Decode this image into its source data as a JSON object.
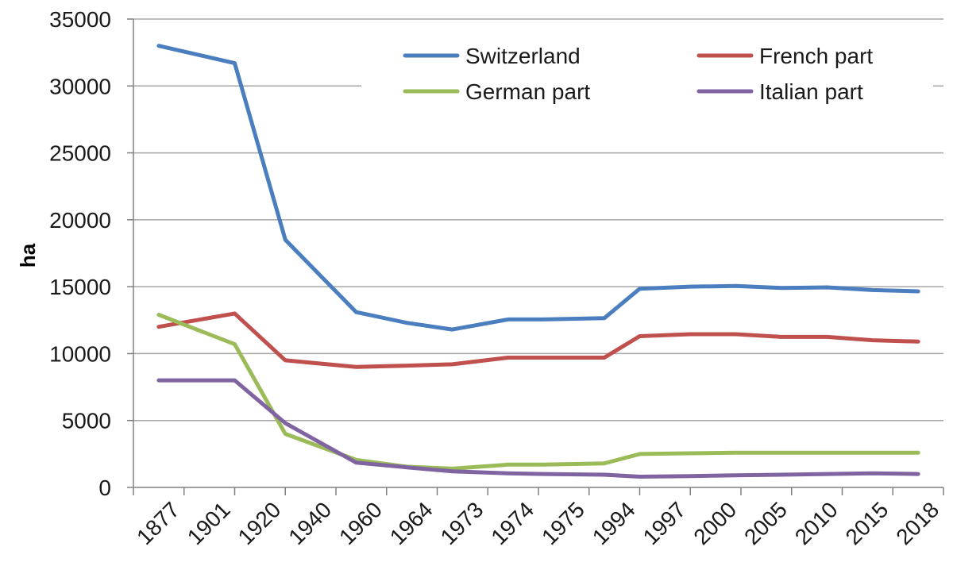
{
  "chart_data": {
    "type": "line",
    "ylabel": "ha",
    "xlabel": "",
    "ylim": [
      0,
      35000
    ],
    "yticks": [
      0,
      5000,
      10000,
      15000,
      20000,
      25000,
      30000,
      35000
    ],
    "grid": "horizontal",
    "legend_position": "top-right",
    "categories": [
      "1877",
      "1901",
      "1920",
      "1940",
      "1960",
      "1964",
      "1973",
      "1974",
      "1975",
      "1994",
      "1997",
      "2000",
      "2005",
      "2010",
      "2015",
      "2018"
    ],
    "series": [
      {
        "name": "Switzerland",
        "color": "#4a7ebf",
        "x": [
          1,
          2.5,
          3.5,
          4.9,
          5.9,
          6.8,
          7.9,
          8.6,
          9.8,
          10.5,
          11.5,
          12.4,
          13.3,
          14.2,
          15.1,
          16
        ],
        "values": [
          33000,
          31700,
          18500,
          13100,
          12300,
          11800,
          12550,
          12550,
          12650,
          14850,
          15000,
          15050,
          14900,
          14950,
          14750,
          14650
        ]
      },
      {
        "name": "French part",
        "color": "#c0504d",
        "x": [
          1,
          2.5,
          3.5,
          4.9,
          5.9,
          6.8,
          7.9,
          8.6,
          9.8,
          10.5,
          11.5,
          12.4,
          13.3,
          14.2,
          15.1,
          16
        ],
        "values": [
          12000,
          13000,
          9500,
          9000,
          9100,
          9200,
          9700,
          9700,
          9700,
          11300,
          11450,
          11450,
          11250,
          11250,
          11000,
          10900
        ]
      },
      {
        "name": "German part",
        "color": "#9bbb59",
        "x": [
          1,
          2.5,
          3.5,
          4.9,
          5.9,
          6.8,
          7.9,
          8.6,
          9.8,
          10.5,
          11.5,
          12.4,
          13.3,
          14.2,
          15.1,
          16
        ],
        "values": [
          12900,
          10700,
          4000,
          2050,
          1550,
          1400,
          1700,
          1700,
          1800,
          2500,
          2550,
          2600,
          2600,
          2600,
          2600,
          2600
        ]
      },
      {
        "name": "Italian part",
        "color": "#8064a2",
        "x": [
          1,
          2.5,
          3.5,
          4.9,
          5.9,
          6.8,
          7.9,
          8.6,
          9.8,
          10.5,
          11.5,
          12.4,
          13.3,
          14.2,
          15.1,
          16
        ],
        "values": [
          8000,
          8000,
          4800,
          1850,
          1500,
          1200,
          1050,
          1000,
          950,
          800,
          850,
          900,
          950,
          1000,
          1050,
          1000
        ]
      }
    ]
  }
}
